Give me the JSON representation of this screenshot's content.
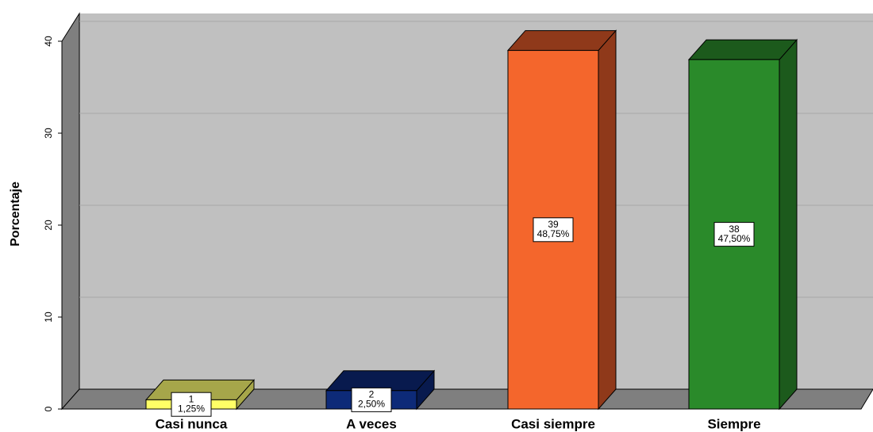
{
  "chart_data": {
    "type": "bar3d",
    "y_label": "Porcentaje",
    "categories": [
      "Casi nunca",
      "A veces",
      "Casi siempre",
      "Siempre"
    ],
    "values": [
      1,
      2,
      39,
      38
    ],
    "percent_labels": [
      "1,25%",
      "2,50%",
      "48,75%",
      "47,50%"
    ],
    "colors": [
      "#ffff66",
      "#0d2a78",
      "#f4662c",
      "#2a8a2a"
    ],
    "side_colors": [
      "#a6a64a",
      "#081a4e",
      "#8f391a",
      "#1c5a1c"
    ],
    "ylim": [
      0,
      40
    ],
    "yticks": [
      0,
      10,
      20,
      30,
      40
    ],
    "grid": true
  }
}
